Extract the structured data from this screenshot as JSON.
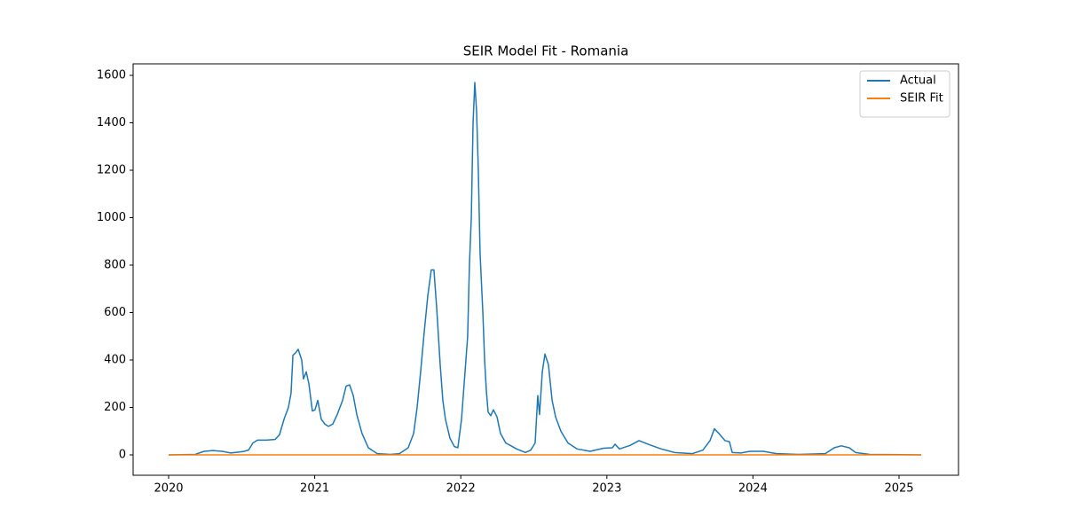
{
  "chart_data": {
    "type": "line",
    "title": "SEIR Model Fit - Romania",
    "xlim": [
      2019.757,
      2025.407
    ],
    "xticks": [
      2020,
      2021,
      2022,
      2023,
      2024,
      2025
    ],
    "ylim": [
      -86,
      1648.6
    ],
    "yticks": [
      0,
      200,
      400,
      600,
      800,
      1000,
      1200,
      1400,
      1600
    ],
    "grid": false,
    "legend": "upper right",
    "series": [
      {
        "name": "Actual",
        "color": "#1f77b4",
        "x": [
          2020.0,
          2020.182,
          2020.243,
          2020.304,
          2020.365,
          2020.425,
          2020.486,
          2020.516,
          2020.547,
          2020.577,
          2020.608,
          2020.668,
          2020.729,
          2020.759,
          2020.79,
          2020.82,
          2020.838,
          2020.851,
          2020.869,
          2020.887,
          2020.911,
          2020.923,
          2020.942,
          2020.96,
          2020.984,
          2021.002,
          2021.021,
          2021.045,
          2021.069,
          2021.094,
          2021.124,
          2021.154,
          2021.191,
          2021.215,
          2021.239,
          2021.264,
          2021.288,
          2021.324,
          2021.367,
          2021.428,
          2021.519,
          2021.58,
          2021.64,
          2021.677,
          2021.701,
          2021.725,
          2021.75,
          2021.774,
          2021.798,
          2021.816,
          2021.835,
          2021.859,
          2021.877,
          2021.895,
          2021.926,
          2021.956,
          2021.98,
          2022.005,
          2022.029,
          2022.047,
          2022.059,
          2022.072,
          2022.084,
          2022.096,
          2022.108,
          2022.12,
          2022.132,
          2022.151,
          2022.163,
          2022.175,
          2022.187,
          2022.205,
          2022.223,
          2022.248,
          2022.272,
          2022.308,
          2022.339,
          2022.381,
          2022.442,
          2022.479,
          2022.509,
          2022.527,
          2022.539,
          2022.558,
          2022.576,
          2022.6,
          2022.625,
          2022.649,
          2022.685,
          2022.734,
          2022.795,
          2022.886,
          2022.977,
          2023.038,
          2023.056,
          2023.086,
          2023.159,
          2023.22,
          2023.281,
          2023.372,
          2023.463,
          2023.584,
          2023.657,
          2023.706,
          2023.736,
          2023.767,
          2023.809,
          2023.839,
          2023.858,
          2023.918,
          2023.979,
          2024.07,
          2024.161,
          2024.313,
          2024.495,
          2024.556,
          2024.605,
          2024.659,
          2024.702,
          2024.799,
          2025.152
        ],
        "values": [
          0,
          2,
          15,
          18,
          15,
          8,
          12,
          15,
          20,
          50,
          62,
          62,
          65,
          85,
          150,
          200,
          260,
          420,
          430,
          445,
          400,
          320,
          350,
          300,
          185,
          190,
          230,
          150,
          130,
          120,
          130,
          170,
          230,
          290,
          295,
          250,
          170,
          90,
          30,
          5,
          2,
          5,
          30,
          90,
          200,
          350,
          520,
          670,
          780,
          780,
          620,
          380,
          230,
          150,
          70,
          35,
          30,
          150,
          350,
          500,
          800,
          1000,
          1400,
          1570,
          1450,
          1200,
          850,
          600,
          400,
          270,
          180,
          165,
          190,
          160,
          90,
          50,
          40,
          25,
          10,
          20,
          50,
          250,
          170,
          350,
          425,
          380,
          230,
          160,
          100,
          50,
          25,
          15,
          28,
          30,
          45,
          25,
          40,
          60,
          45,
          25,
          10,
          5,
          20,
          60,
          110,
          90,
          60,
          55,
          10,
          8,
          15,
          15,
          5,
          2,
          5,
          30,
          38,
          30,
          10,
          2,
          0
        ]
      },
      {
        "name": "SEIR Fit",
        "color": "#ff7f0e",
        "x": [
          2020.0,
          2025.152
        ],
        "values": [
          0,
          0
        ]
      }
    ]
  }
}
